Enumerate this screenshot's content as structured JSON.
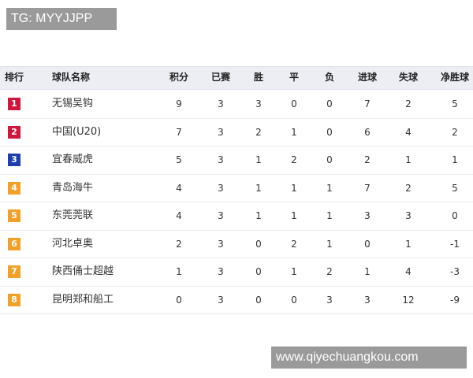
{
  "watermark_top": "TG: MYYJJPP",
  "watermark_bottom": "www.qiyechuangkou.com",
  "table": {
    "headers": [
      "排行",
      "球队名称",
      "积分",
      "已赛",
      "胜",
      "平",
      "负",
      "进球",
      "失球",
      "净胜球"
    ],
    "rows": [
      {
        "rank": 1,
        "badge_color": "#d0163c",
        "team": "无锡吴钩",
        "stats": [
          9,
          3,
          3,
          0,
          0,
          7,
          2,
          5
        ]
      },
      {
        "rank": 2,
        "badge_color": "#d0163c",
        "team": "中国(U20)",
        "stats": [
          7,
          3,
          2,
          1,
          0,
          6,
          4,
          2
        ]
      },
      {
        "rank": 3,
        "badge_color": "#1d3fae",
        "team": "宜春威虎",
        "stats": [
          5,
          3,
          1,
          2,
          0,
          2,
          1,
          1
        ]
      },
      {
        "rank": 4,
        "badge_color": "#f2a126",
        "team": "青岛海牛",
        "stats": [
          4,
          3,
          1,
          1,
          1,
          7,
          2,
          5
        ]
      },
      {
        "rank": 5,
        "badge_color": "#f2a126",
        "team": "东莞莞联",
        "stats": [
          4,
          3,
          1,
          1,
          1,
          3,
          3,
          0
        ]
      },
      {
        "rank": 6,
        "badge_color": "#f2a126",
        "team": "河北卓奥",
        "stats": [
          2,
          3,
          0,
          2,
          1,
          0,
          1,
          -1
        ]
      },
      {
        "rank": 7,
        "badge_color": "#f2a126",
        "team": "陕西俑士超越",
        "stats": [
          1,
          3,
          0,
          1,
          2,
          1,
          4,
          -3
        ]
      },
      {
        "rank": 8,
        "badge_color": "#f2a126",
        "team": "昆明郑和船工",
        "stats": [
          0,
          3,
          0,
          0,
          3,
          3,
          12,
          -9
        ]
      }
    ]
  }
}
